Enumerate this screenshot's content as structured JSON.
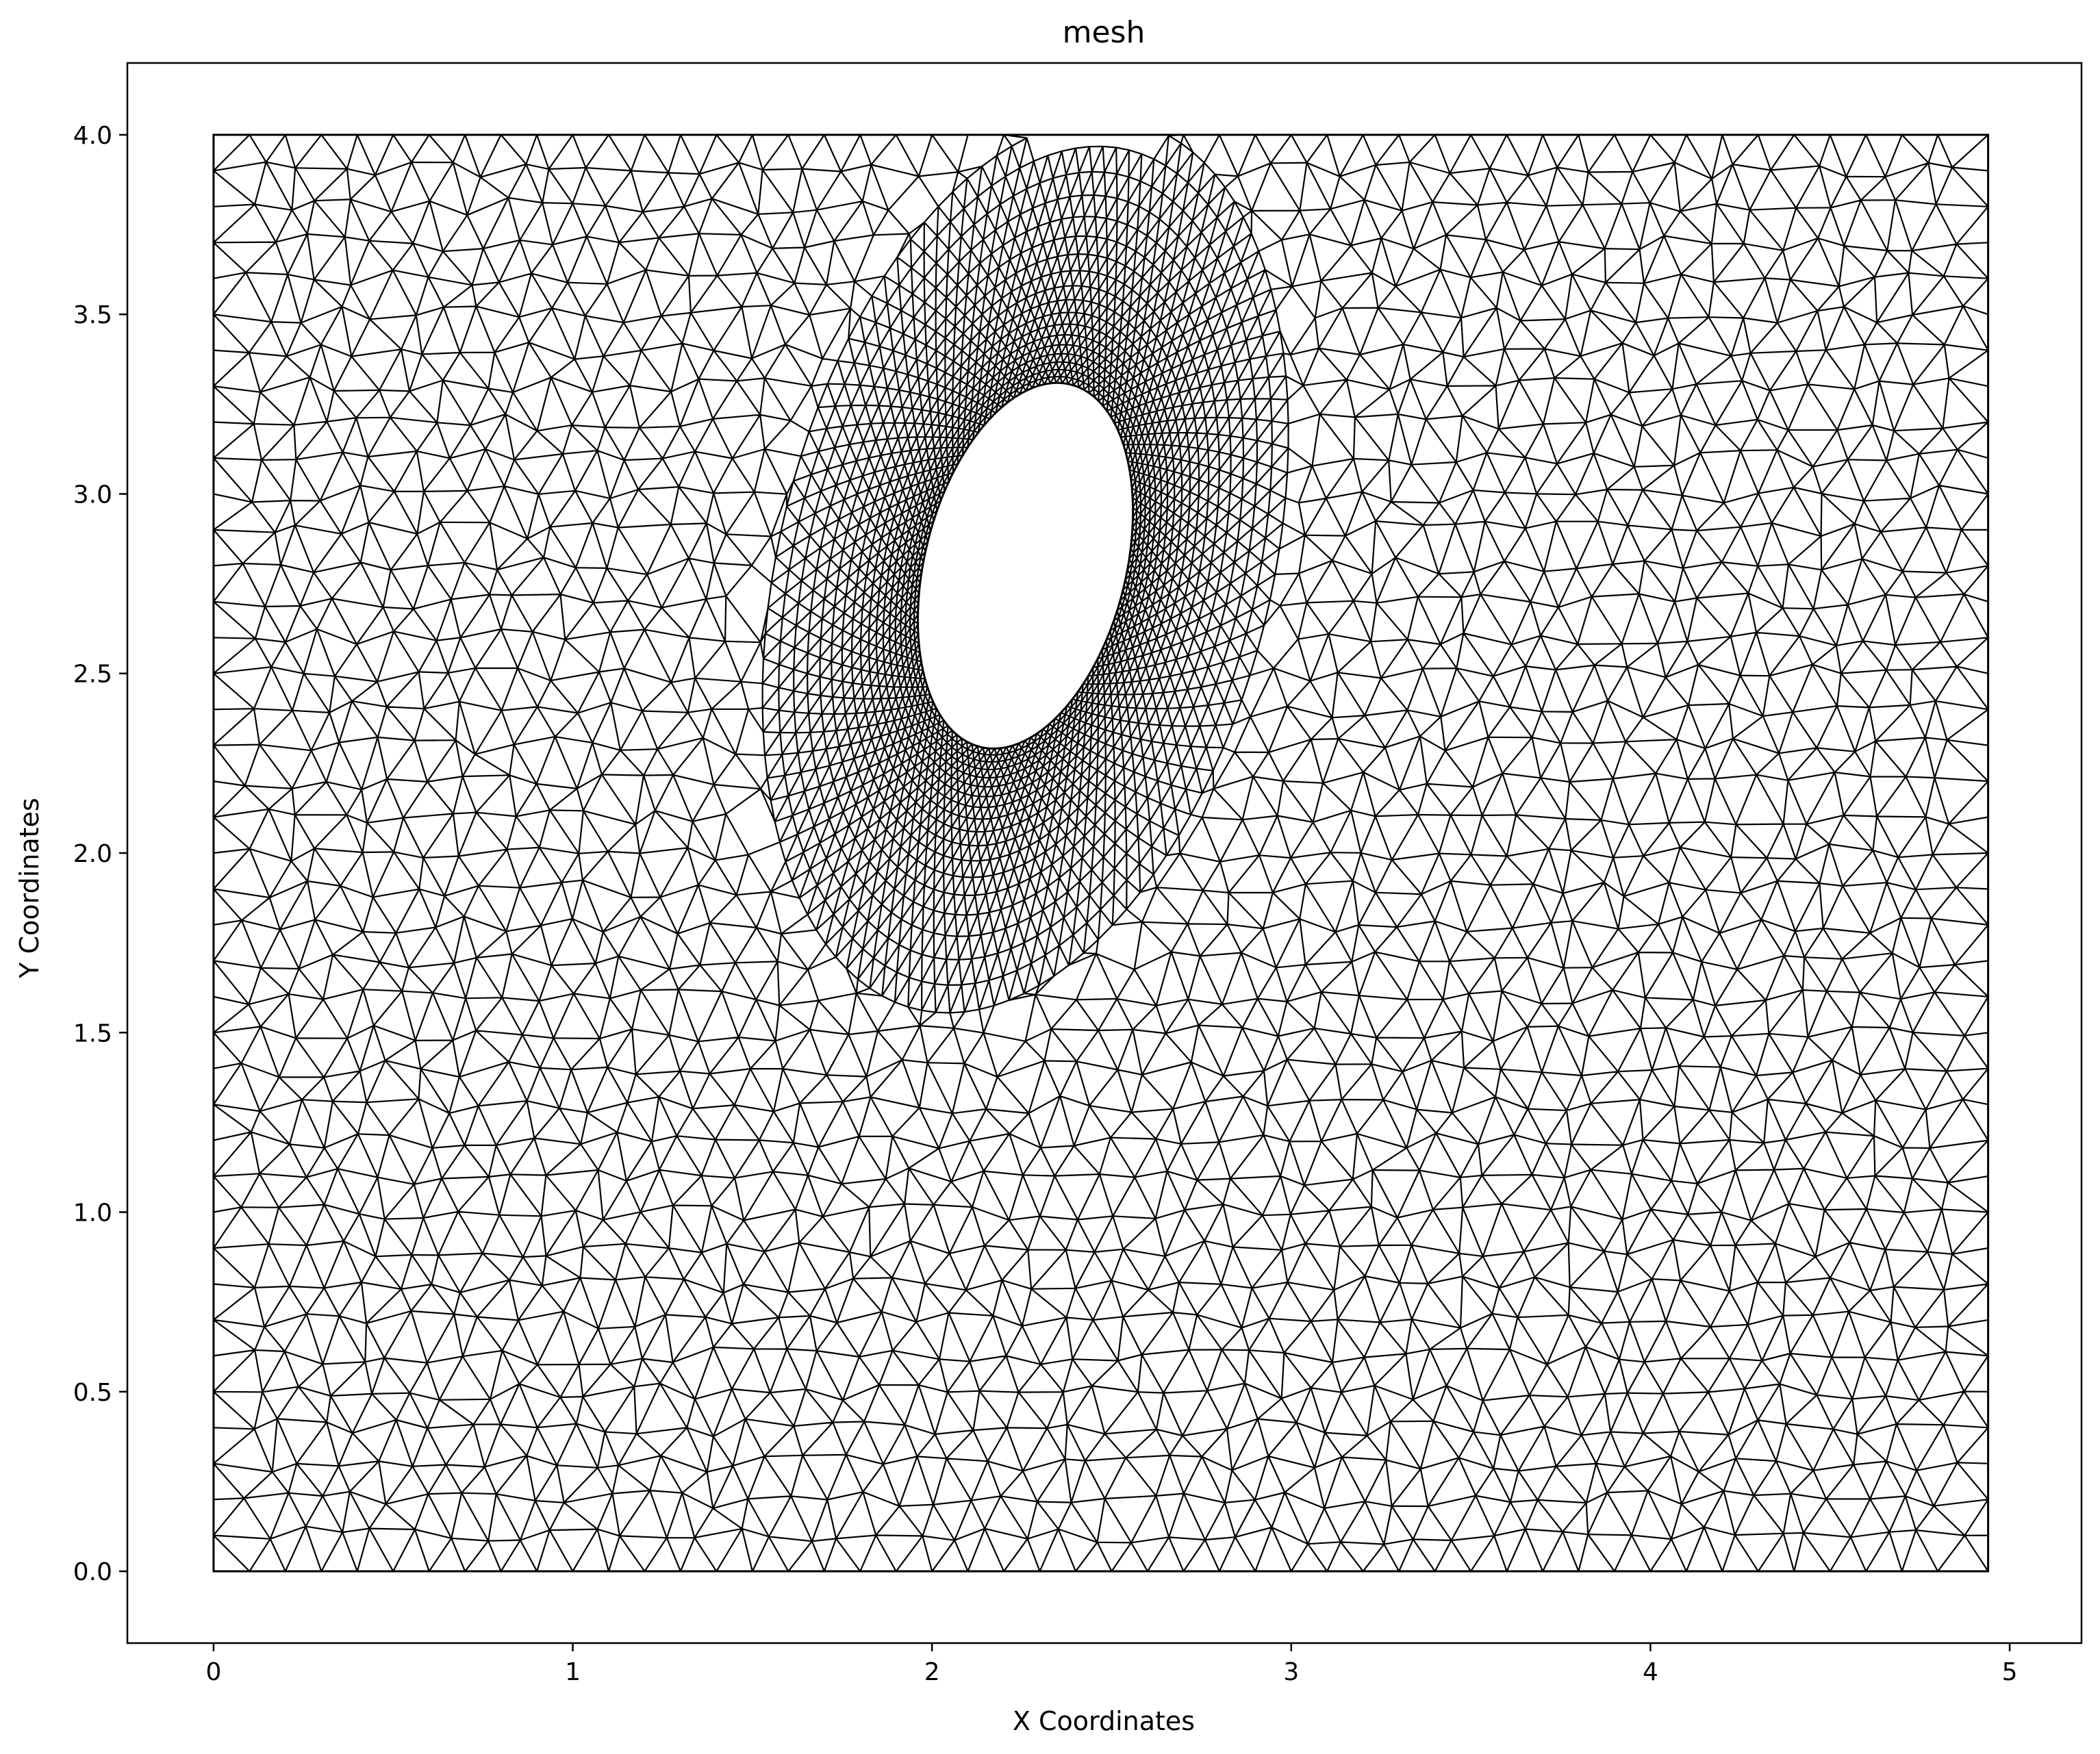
{
  "chart_data": {
    "type": "mesh",
    "title": "mesh",
    "xlabel": "X Coordinates",
    "ylabel": "Y Coordinates",
    "xlim": [
      -0.24,
      5.2
    ],
    "ylim": [
      -0.2,
      4.2
    ],
    "xticks": [
      {
        "value": 0,
        "label": "0"
      },
      {
        "value": 1,
        "label": "1"
      },
      {
        "value": 2,
        "label": "2"
      },
      {
        "value": 3,
        "label": "3"
      },
      {
        "value": 4,
        "label": "4"
      },
      {
        "value": 5,
        "label": "5"
      }
    ],
    "yticks": [
      {
        "value": 0.0,
        "label": "0.0"
      },
      {
        "value": 0.5,
        "label": "0.5"
      },
      {
        "value": 1.0,
        "label": "1.0"
      },
      {
        "value": 1.5,
        "label": "1.5"
      },
      {
        "value": 2.0,
        "label": "2.0"
      },
      {
        "value": 2.5,
        "label": "2.5"
      },
      {
        "value": 3.0,
        "label": "3.0"
      },
      {
        "value": 3.5,
        "label": "3.5"
      },
      {
        "value": 4.0,
        "label": "4.0"
      }
    ],
    "domain": {
      "xmin": 0.0,
      "xmax": 4.94,
      "ymin": 0.0,
      "ymax": 4.0
    },
    "hole": {
      "shape": "ellipse",
      "cx": 2.26,
      "cy": 2.8,
      "rx": 0.28,
      "ry": 0.52,
      "angle_deg": -14
    },
    "element_type": "triangle",
    "edge_color": "#000000",
    "grid": false
  }
}
